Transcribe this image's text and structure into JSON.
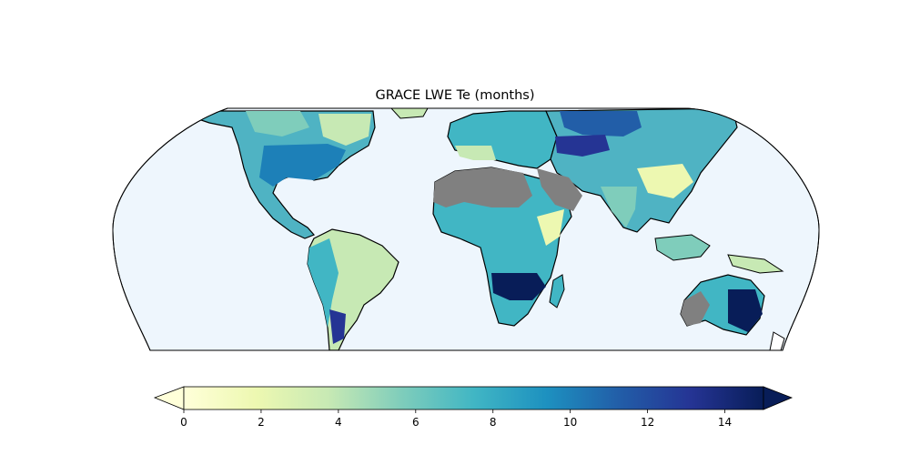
{
  "title": "GRACE LWE Te (months)",
  "projection": "equal-earth-robinson-like",
  "ocean_color": "#eef6fd",
  "nodata_color": "#808080",
  "colorbar": {
    "colormap": "YlGnBu",
    "min": 0,
    "max": 15,
    "extend": "both",
    "ticks": [
      0,
      2,
      4,
      6,
      8,
      10,
      12,
      14
    ],
    "tick_labels": [
      "0",
      "2",
      "4",
      "6",
      "8",
      "10",
      "12",
      "14"
    ],
    "stops": [
      {
        "value": 0,
        "color": "#ffffd9"
      },
      {
        "value": 1.875,
        "color": "#edf8b1"
      },
      {
        "value": 3.75,
        "color": "#c7e9b4"
      },
      {
        "value": 5.625,
        "color": "#7fcdbb"
      },
      {
        "value": 7.5,
        "color": "#41b6c4"
      },
      {
        "value": 9.375,
        "color": "#1d91c0"
      },
      {
        "value": 11.25,
        "color": "#225ea8"
      },
      {
        "value": 13.125,
        "color": "#253494"
      },
      {
        "value": 15,
        "color": "#081d58"
      }
    ]
  }
}
